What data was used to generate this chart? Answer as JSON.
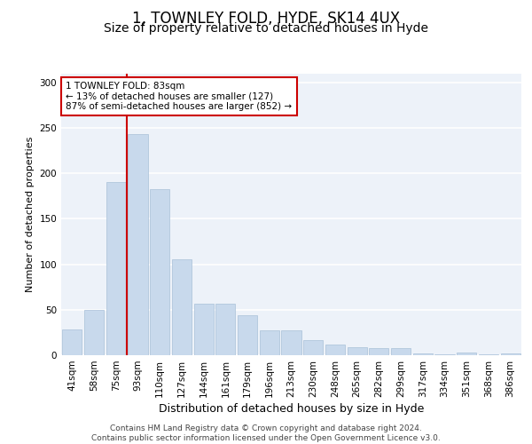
{
  "title1": "1, TOWNLEY FOLD, HYDE, SK14 4UX",
  "title2": "Size of property relative to detached houses in Hyde",
  "xlabel": "Distribution of detached houses by size in Hyde",
  "ylabel": "Number of detached properties",
  "categories": [
    "41sqm",
    "58sqm",
    "75sqm",
    "93sqm",
    "110sqm",
    "127sqm",
    "144sqm",
    "161sqm",
    "179sqm",
    "196sqm",
    "213sqm",
    "230sqm",
    "248sqm",
    "265sqm",
    "282sqm",
    "299sqm",
    "317sqm",
    "334sqm",
    "351sqm",
    "368sqm",
    "386sqm"
  ],
  "values": [
    28,
    50,
    190,
    243,
    183,
    105,
    57,
    57,
    44,
    27,
    27,
    17,
    12,
    9,
    8,
    8,
    2,
    1,
    3,
    1,
    2
  ],
  "bar_color": "#c8d9ec",
  "bar_edge_color": "#a8c0d8",
  "annotation_text": "1 TOWNLEY FOLD: 83sqm\n← 13% of detached houses are smaller (127)\n87% of semi-detached houses are larger (852) →",
  "annotation_box_facecolor": "#ffffff",
  "annotation_box_edgecolor": "#cc0000",
  "vline_color": "#cc0000",
  "vline_x": 2.5,
  "ylim": [
    0,
    310
  ],
  "yticks": [
    0,
    50,
    100,
    150,
    200,
    250,
    300
  ],
  "footnote": "Contains HM Land Registry data © Crown copyright and database right 2024.\nContains public sector information licensed under the Open Government Licence v3.0.",
  "bg_color": "#edf2f9",
  "grid_color": "#ffffff",
  "title1_fontsize": 12,
  "title2_fontsize": 10,
  "xlabel_fontsize": 9,
  "ylabel_fontsize": 8,
  "tick_fontsize": 7.5,
  "annot_fontsize": 7.5,
  "footnote_fontsize": 6.5
}
